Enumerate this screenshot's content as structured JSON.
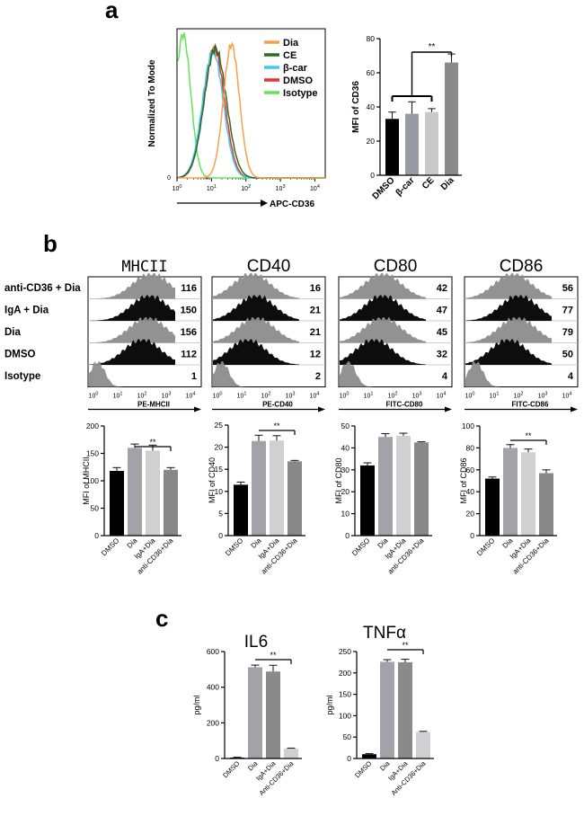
{
  "figure": {
    "panel_a": "a",
    "panel_b": "b",
    "panel_c": "c"
  },
  "chart_data": [
    {
      "id": "a-hist",
      "type": "line",
      "title": "",
      "xlabel": "APC-CD36",
      "ylabel": "Normalized To Mode",
      "xscale": "log",
      "xlim": [
        1,
        20000
      ],
      "ylim_label": "0",
      "xticks": [
        "10^0",
        "10^1",
        "10^2",
        "10^3",
        "10^4"
      ],
      "legend": [
        "Dia",
        "CE",
        "β-car",
        "DMSO",
        "Isotype"
      ],
      "colors": {
        "Dia": "#f7a04b",
        "CE": "#2e6b1e",
        "β-car": "#3ecbf2",
        "DMSO": "#e8302f",
        "Isotype": "#62e35a"
      },
      "series": [
        {
          "name": "Isotype",
          "peak_x": 1.5,
          "peak_height": 1.0
        },
        {
          "name": "DMSO",
          "peak_x": 12,
          "peak_height": 0.9
        },
        {
          "name": "β-car",
          "peak_x": 11,
          "peak_height": 0.88
        },
        {
          "name": "CE",
          "peak_x": 13,
          "peak_height": 0.9
        },
        {
          "name": "Dia",
          "peak_x": 38,
          "peak_height": 0.93
        }
      ]
    },
    {
      "id": "a-bar",
      "type": "bar",
      "ylabel": "MFI of CD36",
      "ylim": [
        0,
        80
      ],
      "yticks": [
        "0",
        "20",
        "40",
        "60",
        "80"
      ],
      "categories": [
        "DMSO",
        "β-car",
        "CE",
        "Dia"
      ],
      "values": [
        33,
        36,
        37,
        66
      ],
      "errors": [
        4,
        7,
        2,
        5
      ],
      "colors": [
        "#000000",
        "#9a9aa4",
        "#c9c9cc",
        "#8a8a8a"
      ],
      "significance": "**"
    },
    {
      "id": "b-hist",
      "type": "histogram-stack",
      "row_labels": [
        "anti-CD36 + Dia",
        "IgA + Dia",
        "Dia",
        "DMSO",
        "Isotype"
      ],
      "tick_labels": [
        "10^0",
        "10^1",
        "10^2",
        "10^3",
        "10^4"
      ],
      "panels": [
        {
          "marker": "MHCII",
          "xlabel": "PE-MHCII",
          "values": [
            "116",
            "150",
            "156",
            "112",
            "1"
          ]
        },
        {
          "marker": "CD40",
          "xlabel": "PE-CD40",
          "values": [
            "16",
            "21",
            "21",
            "12",
            "2"
          ]
        },
        {
          "marker": "CD80",
          "xlabel": "FITC-CD80",
          "values": [
            "42",
            "47",
            "45",
            "32",
            "4"
          ]
        },
        {
          "marker": "CD86",
          "xlabel": "FITC-CD86",
          "values": [
            "56",
            "77",
            "79",
            "50",
            "4"
          ]
        }
      ]
    },
    {
      "id": "b-mhcii",
      "type": "bar",
      "ylabel": "MFI of MHCII",
      "ylim": [
        0,
        200
      ],
      "yticks": [
        "0",
        "50",
        "100",
        "150",
        "200"
      ],
      "categories": [
        "DMSO",
        "Dia",
        "IgA+Dia",
        "anti-CD36+Dia"
      ],
      "values": [
        118,
        160,
        155,
        120
      ],
      "errors": [
        6,
        7,
        10,
        4
      ],
      "colors": [
        "#000000",
        "#a2a2a8",
        "#d0d0d2",
        "#888888"
      ],
      "significance": "**"
    },
    {
      "id": "b-cd40",
      "type": "bar",
      "ylabel": "MFI of CD40",
      "ylim": [
        0,
        25
      ],
      "yticks": [
        "0",
        "5",
        "10",
        "15",
        "20",
        "25"
      ],
      "categories": [
        "DMSO",
        "Dia",
        "IgA+Dia",
        "anti-CD36+Dia"
      ],
      "values": [
        11.5,
        21.4,
        21.5,
        16.8
      ],
      "errors": [
        0.6,
        1.3,
        1.1,
        0.2
      ],
      "colors": [
        "#000000",
        "#a2a2a8",
        "#d0d0d2",
        "#888888"
      ],
      "significance": "**"
    },
    {
      "id": "b-cd80",
      "type": "bar",
      "ylabel": "MFI of CD80",
      "ylim": [
        0,
        50
      ],
      "yticks": [
        "0",
        "10",
        "20",
        "30",
        "40",
        "50"
      ],
      "categories": [
        "DMSO",
        "Dia",
        "IgA+Dia",
        "anti-CD36+Dia"
      ],
      "values": [
        32,
        45,
        45.5,
        42.5
      ],
      "errors": [
        1.2,
        1.5,
        1.2,
        0.3
      ],
      "colors": [
        "#000000",
        "#a2a2a8",
        "#d0d0d2",
        "#888888"
      ],
      "significance": ""
    },
    {
      "id": "b-cd86",
      "type": "bar",
      "ylabel": "MFI of CD86",
      "ylim": [
        0,
        100
      ],
      "yticks": [
        "0",
        "20",
        "40",
        "60",
        "80",
        "100"
      ],
      "categories": [
        "DMSO",
        "Dia",
        "IgA+Dia",
        "anti-CD36+Dia"
      ],
      "values": [
        52,
        80,
        76,
        57
      ],
      "errors": [
        1.5,
        3,
        3,
        3
      ],
      "colors": [
        "#000000",
        "#a2a2a8",
        "#d0d0d2",
        "#888888"
      ],
      "significance": "**"
    },
    {
      "id": "c-il6",
      "type": "bar",
      "title": "IL6",
      "ylabel": "pg/ml",
      "ylim": [
        0,
        600
      ],
      "yticks": [
        "0",
        "200",
        "400",
        "600"
      ],
      "categories": [
        "DMSO",
        "Dia",
        "IgA+Dia",
        "Anti-CD36+Dia"
      ],
      "values": [
        5,
        512,
        488,
        55
      ],
      "errors": [
        2,
        12,
        35,
        3
      ],
      "colors": [
        "#000000",
        "#a2a2a8",
        "#8a8a8a",
        "#d0d0d2"
      ],
      "significance": "**"
    },
    {
      "id": "c-tnfa",
      "type": "bar",
      "title": "TNFα",
      "ylabel": "pg/ml",
      "ylim": [
        0,
        250
      ],
      "yticks": [
        "0",
        "50",
        "100",
        "150",
        "200",
        "250"
      ],
      "categories": [
        "DMSO",
        "Dia",
        "IgA+Dia",
        "Anti-CD36+Dia"
      ],
      "values": [
        10,
        226,
        225,
        62
      ],
      "errors": [
        1.5,
        5,
        7,
        1.5
      ],
      "colors": [
        "#000000",
        "#a2a2a8",
        "#8a8a8a",
        "#d0d0d2"
      ],
      "significance": "**"
    }
  ]
}
